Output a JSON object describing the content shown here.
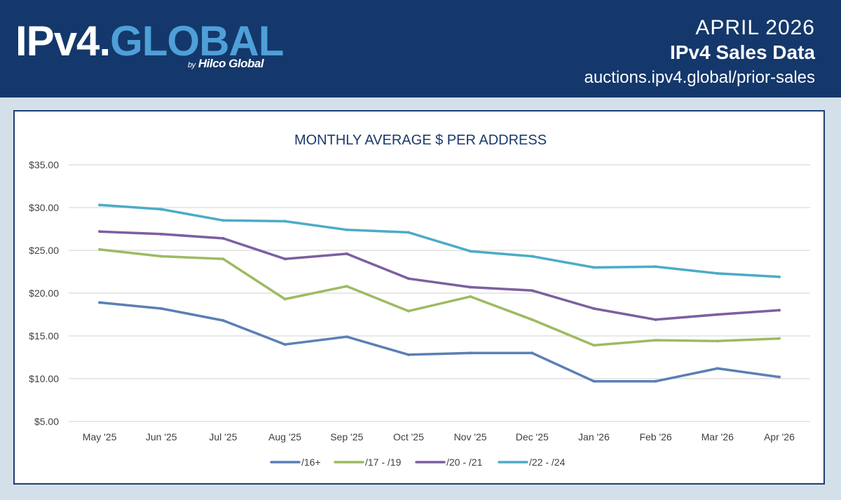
{
  "header": {
    "logo_prefix": "IPv4",
    "logo_dot": ".",
    "logo_main": "GLOBAL",
    "byline_by": "by",
    "byline_name": "Hilco Global",
    "date": "APRIL 2026",
    "title": "IPv4 Sales Data",
    "url": "auctions.ipv4.global/prior-sales"
  },
  "chart_data": {
    "type": "line",
    "title": "MONTHLY AVERAGE $ PER ADDRESS",
    "categories": [
      "May '25",
      "Jun '25",
      "Jul '25",
      "Aug '25",
      "Sep '25",
      "Oct '25",
      "Nov '25",
      "Dec '25",
      "Jan '26",
      "Feb '26",
      "Mar '26",
      "Apr '26"
    ],
    "ylim": [
      5,
      35
    ],
    "yticks": [
      "$5.00",
      "$10.00",
      "$15.00",
      "$20.00",
      "$25.00",
      "$30.00",
      "$35.00"
    ],
    "ytick_values": [
      5,
      10,
      15,
      20,
      25,
      30,
      35
    ],
    "grid": true,
    "legend_position": "bottom",
    "series": [
      {
        "name": "/16+",
        "color": "#5b7fb6",
        "values": [
          18.9,
          18.2,
          16.8,
          14.0,
          14.9,
          12.8,
          13.0,
          13.0,
          9.7,
          9.7,
          11.2,
          10.2
        ]
      },
      {
        "name": "/17 - /19",
        "color": "#9dbb61",
        "values": [
          25.1,
          24.3,
          24.0,
          19.3,
          20.8,
          17.9,
          19.6,
          16.9,
          13.9,
          14.5,
          14.4,
          14.7
        ]
      },
      {
        "name": "/20 - /21",
        "color": "#7c5fa0",
        "values": [
          27.2,
          26.9,
          26.4,
          24.0,
          24.6,
          21.7,
          20.7,
          20.3,
          18.2,
          16.9,
          17.5,
          18.0
        ]
      },
      {
        "name": "/22 - /24",
        "color": "#4bacc6",
        "values": [
          30.3,
          29.8,
          28.5,
          28.4,
          27.4,
          27.1,
          24.9,
          24.3,
          23.0,
          23.1,
          22.3,
          21.9
        ]
      }
    ]
  }
}
